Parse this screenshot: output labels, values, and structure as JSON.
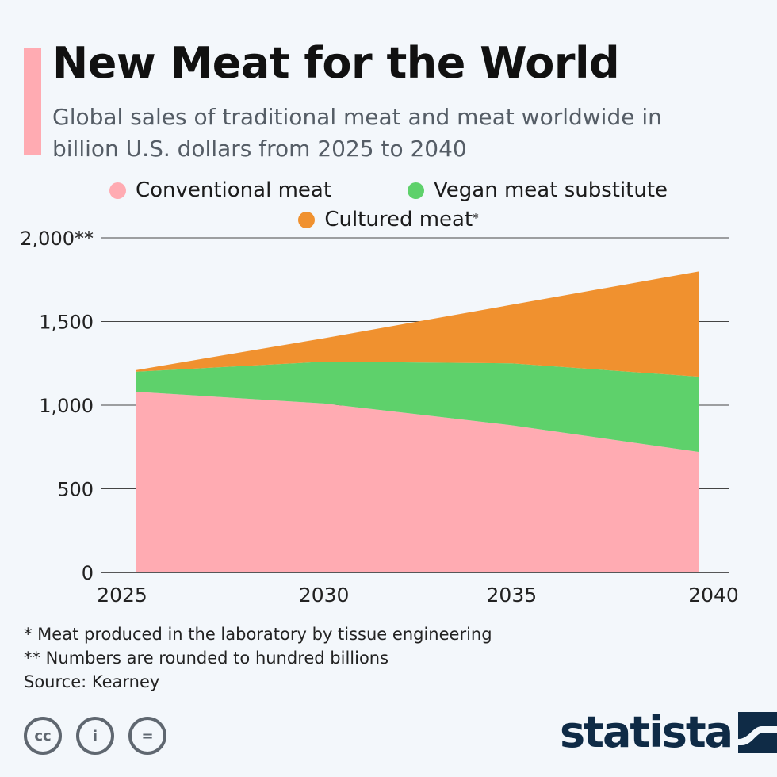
{
  "header": {
    "title": "New Meat for the World",
    "subtitle": "Global sales of traditional meat and meat worldwide in billion U.S. dollars from 2025 to 2040"
  },
  "legend": [
    {
      "label": "Conventional meat",
      "suffix": "",
      "color": "#ffabb2"
    },
    {
      "label": "Vegan meat substitute",
      "suffix": "",
      "color": "#5ed16b"
    },
    {
      "label": "Cultured meat",
      "suffix": "*",
      "color": "#f0912f"
    }
  ],
  "chart_data": {
    "type": "area",
    "stacked": true,
    "x": [
      2025,
      2030,
      2035,
      2040
    ],
    "series": [
      {
        "name": "Conventional meat",
        "color": "#ffabb2",
        "values": [
          1080,
          1010,
          880,
          720
        ]
      },
      {
        "name": "Vegan meat substitute",
        "color": "#5ed16b",
        "values": [
          120,
          250,
          370,
          450
        ]
      },
      {
        "name": "Cultured meat",
        "color": "#f0912f",
        "values": [
          10,
          140,
          350,
          630
        ]
      }
    ],
    "ylim": [
      0,
      2000
    ],
    "y_ticks": [
      {
        "value": 0,
        "label": "0"
      },
      {
        "value": 500,
        "label": "500"
      },
      {
        "value": 1000,
        "label": "1,000"
      },
      {
        "value": 1500,
        "label": "1,500"
      },
      {
        "value": 2000,
        "label": "2,000**"
      }
    ],
    "x_tick_labels": [
      "2025",
      "2030",
      "2035",
      "2040"
    ],
    "grid": true,
    "legend_position": "top-center"
  },
  "footnotes": {
    "note1": "* Meat produced in the laboratory by tissue engineering",
    "note2": "** Numbers are rounded to hundred billions",
    "source": "Source: Kearney"
  },
  "license_icons": {
    "cc": "cc",
    "by": "i",
    "nd": "="
  },
  "brand": {
    "name": "statista",
    "color": "#0f2b46"
  }
}
